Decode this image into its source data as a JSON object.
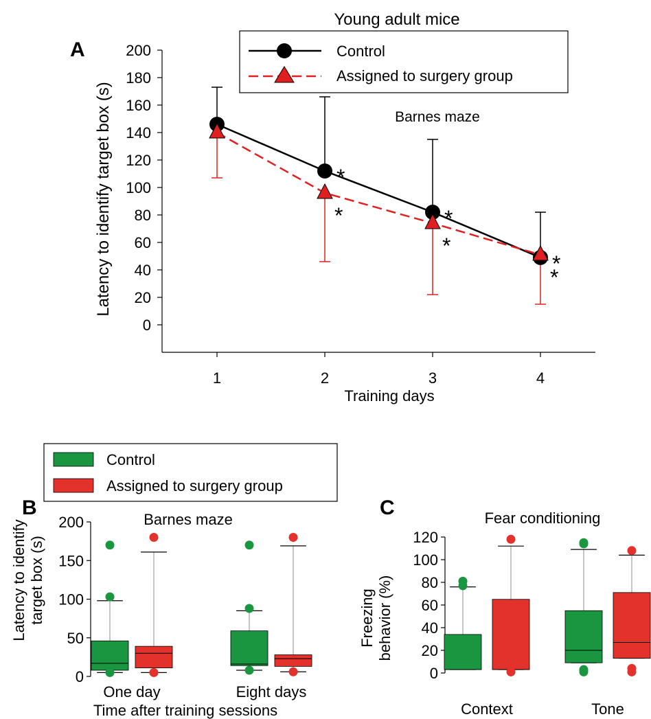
{
  "colors": {
    "control_line": "#000000",
    "surgery_line": "#e02020",
    "control_box": "#1a9641",
    "surgery_box": "#e3312b"
  },
  "chart_data": [
    {
      "panel": "A",
      "type": "line",
      "title": "Young adult mice",
      "annotation": "Barnes maze",
      "xlabel": "Training days",
      "ylabel": "Latency to identify target box (s)",
      "x": [
        1,
        2,
        3,
        4
      ],
      "xticks": [
        "1",
        "2",
        "3",
        "4"
      ],
      "yticks": [
        "0",
        "20",
        "40",
        "60",
        "80",
        "100",
        "120",
        "140",
        "160",
        "180",
        "200"
      ],
      "ylim": [
        -20,
        200
      ],
      "legend_position": "top-right",
      "series": [
        {
          "name": "Control",
          "marker": "circle",
          "values": [
            146,
            112,
            82,
            49
          ],
          "error_up": [
            173,
            166,
            135,
            82
          ],
          "significance": [
            "",
            "*",
            "*",
            "*"
          ]
        },
        {
          "name": "Assigned to surgery group",
          "marker": "triangle",
          "values": [
            140,
            96,
            74,
            51
          ],
          "error_down": [
            107,
            46,
            22,
            15
          ],
          "significance": [
            "",
            "*",
            "*",
            "*"
          ]
        }
      ]
    },
    {
      "panel": "B",
      "type": "box",
      "title": "Barnes maze",
      "xlabel": "Time after training sessions",
      "ylabel_lines": [
        "Latency to identify",
        "target box (s)"
      ],
      "categories": [
        "One day",
        "Eight days"
      ],
      "yticks": [
        "0",
        "50",
        "100",
        "150",
        "200"
      ],
      "ylim": [
        0,
        200
      ],
      "legend": [
        "Control",
        "Assigned to surgery group"
      ],
      "series": [
        {
          "name": "Control",
          "boxes": [
            {
              "whisker_low": 5,
              "q1": 8,
              "median": 17,
              "q3": 46,
              "whisker_high": 98,
              "outliers": [
                5,
                103,
                170
              ]
            },
            {
              "whisker_low": 8,
              "q1": 14,
              "median": 16,
              "q3": 59,
              "whisker_high": 85,
              "outliers": [
                8,
                88,
                170
              ]
            }
          ]
        },
        {
          "name": "Assigned to surgery group",
          "boxes": [
            {
              "whisker_low": 5,
              "q1": 11,
              "median": 30,
              "q3": 39,
              "whisker_high": 161,
              "outliers": [
                5,
                180
              ]
            },
            {
              "whisker_low": 6,
              "q1": 13,
              "median": 23,
              "q3": 28,
              "whisker_high": 169,
              "outliers": [
                6,
                180
              ]
            }
          ]
        }
      ]
    },
    {
      "panel": "C",
      "type": "box",
      "title": "Fear conditioning",
      "ylabel_lines": [
        "Freezing",
        "behavior  (%)"
      ],
      "categories": [
        "Context",
        "Tone"
      ],
      "yticks": [
        "0",
        "20",
        "40",
        "60",
        "80",
        "100",
        "120"
      ],
      "ylim": [
        0,
        120
      ],
      "series": [
        {
          "name": "Control",
          "boxes": [
            {
              "whisker_low": 3,
              "q1": 3,
              "median": 3,
              "q3": 34,
              "whisker_high": 76,
              "outliers": [
                77,
                81
              ]
            },
            {
              "whisker_low": 9,
              "q1": 9,
              "median": 20,
              "q3": 55,
              "whisker_high": 109,
              "outliers": [
                1,
                3,
                114,
                115
              ]
            }
          ]
        },
        {
          "name": "Assigned to surgery group",
          "boxes": [
            {
              "whisker_low": 3,
              "q1": 3,
              "median": 3,
              "q3": 65,
              "whisker_high": 112,
              "outliers": [
                1,
                118
              ]
            },
            {
              "whisker_low": 13,
              "q1": 13,
              "median": 27,
              "q3": 71,
              "whisker_high": 104,
              "outliers": [
                1,
                4,
                108
              ]
            }
          ]
        }
      ]
    }
  ]
}
